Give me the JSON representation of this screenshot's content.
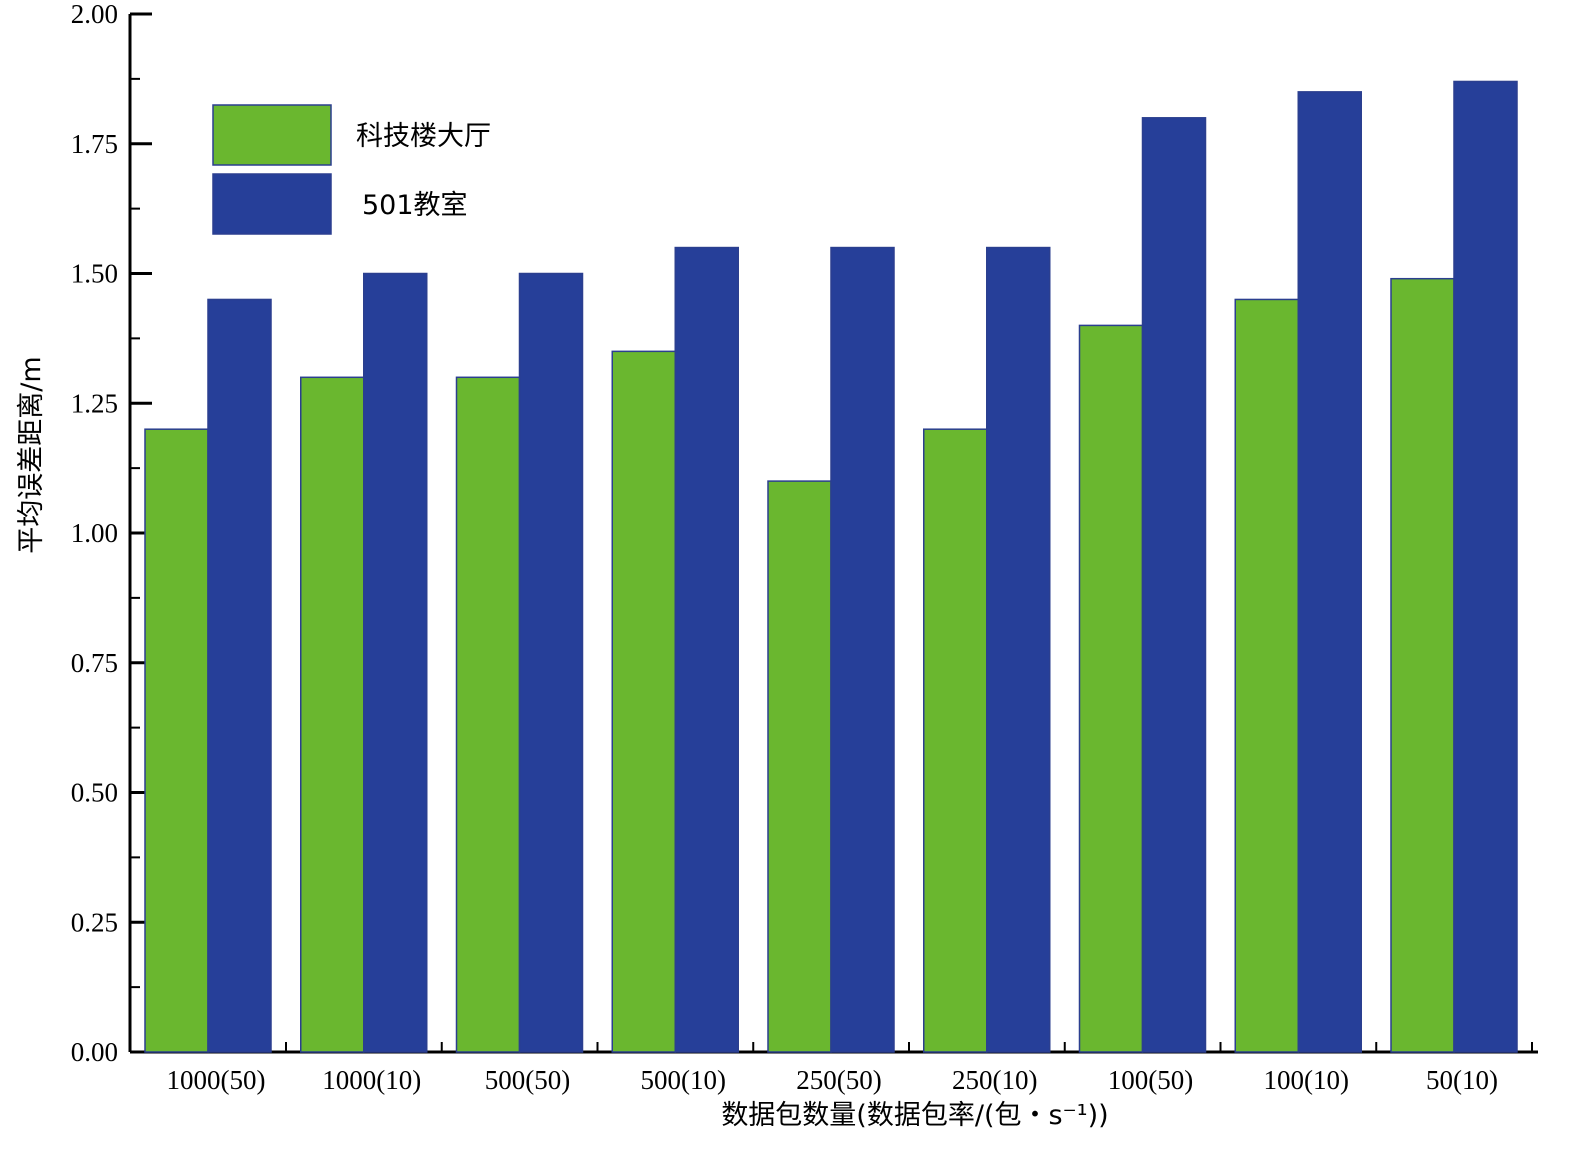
{
  "chart_data": {
    "type": "bar",
    "xlabel": "数据包数量(数据包率/(包・s⁻¹))",
    "ylabel": "平均误差距离/m",
    "ylim": [
      0,
      2.0
    ],
    "yticks": [
      "0.00",
      "0.25",
      "0.50",
      "0.75",
      "1.00",
      "1.25",
      "1.50",
      "1.75",
      "2.00"
    ],
    "categories": [
      "1000(50)",
      "1000(10)",
      "500(50)",
      "500(10)",
      "250(50)",
      "250(10)",
      "100(50)",
      "100(10)",
      "50(10)"
    ],
    "series": [
      {
        "name": "科技楼大厅",
        "color": "#6ab72f",
        "values": [
          1.2,
          1.3,
          1.3,
          1.35,
          1.1,
          1.2,
          1.4,
          1.45,
          1.49
        ]
      },
      {
        "name": "501教室",
        "color": "#263f99",
        "values": [
          1.45,
          1.5,
          1.5,
          1.55,
          1.55,
          1.55,
          1.8,
          1.85,
          1.87
        ]
      }
    ],
    "legend_position": "top-left",
    "grid": false
  }
}
